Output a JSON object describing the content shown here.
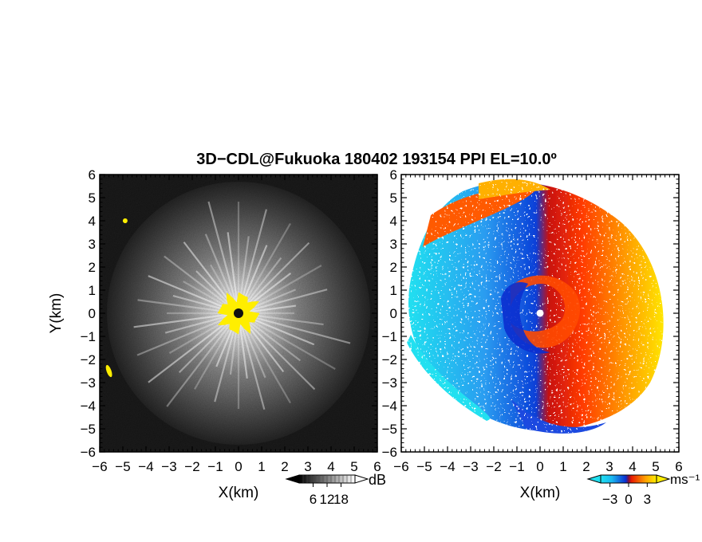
{
  "title": "3D−CDL@Fukuoka 180402 193154 PPI EL=10.0º",
  "chart_data": [
    {
      "type": "heatmap",
      "quantity": "backscatter intensity",
      "xlabel": "X(km)",
      "ylabel": "Y(km)",
      "xlim": [
        -6,
        6
      ],
      "ylim": [
        -6,
        6
      ],
      "x_ticks": [
        "−6",
        "−5",
        "−4",
        "−3",
        "−2",
        "−1",
        "0",
        "1",
        "2",
        "3",
        "4",
        "5",
        "6"
      ],
      "y_ticks": [
        "6",
        "5",
        "4",
        "3",
        "2",
        "1",
        "0",
        "−1",
        "−2",
        "−3",
        "−4",
        "−5",
        "−6"
      ],
      "background_color": "#1e1e1e",
      "colormap": "grayscale",
      "saturation_color": "#ffee00",
      "colorbar": {
        "unit": "dB",
        "ticks": [
          "6",
          "12",
          "18"
        ],
        "range": [
          0,
          24
        ]
      },
      "features": [
        {
          "label": "near-range saturation",
          "x": 0.0,
          "y": 0.0,
          "radius_km": 0.8
        },
        {
          "label": "echo",
          "x": -4.9,
          "y": 4.0
        },
        {
          "label": "echo",
          "x": -5.6,
          "y": -2.5
        }
      ]
    },
    {
      "type": "heatmap",
      "quantity": "radial velocity",
      "xlabel": "X(km)",
      "xlim": [
        -6,
        6
      ],
      "ylim": [
        -6,
        6
      ],
      "x_ticks": [
        "−6",
        "−5",
        "−4",
        "−3",
        "−2",
        "−1",
        "0",
        "1",
        "2",
        "3",
        "4",
        "5",
        "6"
      ],
      "y_ticks": [
        "6",
        "5",
        "4",
        "3",
        "2",
        "1",
        "0",
        "−1",
        "−2",
        "−3",
        "−4",
        "−5",
        "−6"
      ],
      "colormap": "cyan-blue-red-yellow",
      "colorbar": {
        "unit": "ms⁻¹",
        "ticks": [
          "−3",
          "0",
          "3"
        ],
        "range": [
          -4.5,
          4.5
        ]
      }
    }
  ]
}
